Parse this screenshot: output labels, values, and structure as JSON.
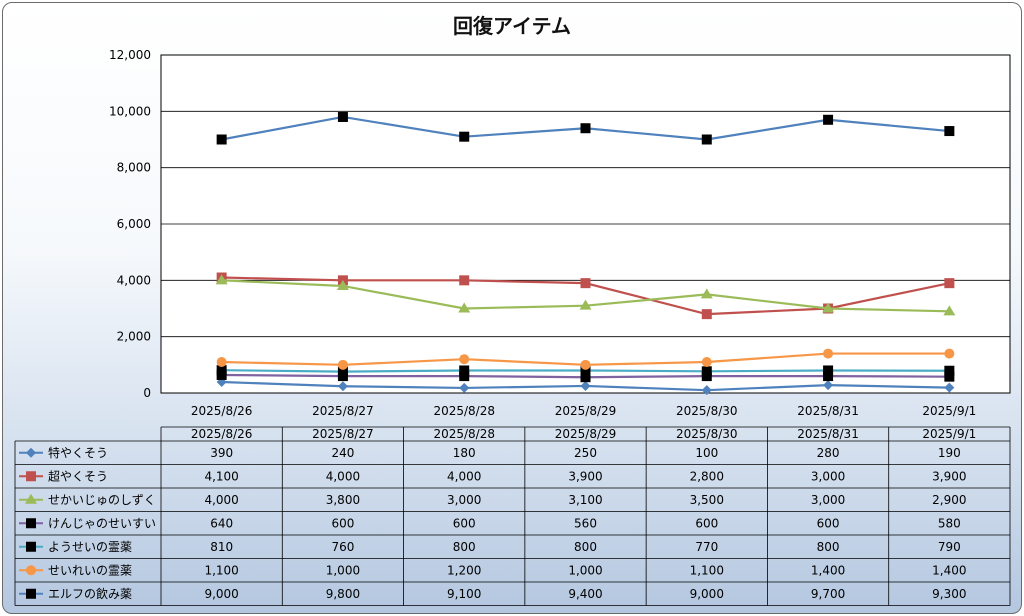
{
  "chart_data": {
    "type": "line",
    "title": "回復アイテム",
    "categories": [
      "2025/8/26",
      "2025/8/27",
      "2025/8/28",
      "2025/8/29",
      "2025/8/30",
      "2025/8/31",
      "2025/9/1"
    ],
    "ylim": [
      0,
      12000
    ],
    "yticks": [
      0,
      2000,
      4000,
      6000,
      8000,
      10000,
      12000
    ],
    "ytick_labels": [
      "0",
      "2,000",
      "4,000",
      "6,000",
      "8,000",
      "10,000",
      "12,000"
    ],
    "grid": true,
    "legend": "data-table",
    "series": [
      {
        "name": "特やくそう",
        "color": "#4f81bd",
        "marker": "diamond",
        "values": [
          390,
          240,
          180,
          250,
          100,
          280,
          190
        ],
        "labels": [
          "390",
          "240",
          "180",
          "250",
          "100",
          "280",
          "190"
        ]
      },
      {
        "name": "超やくそう",
        "color": "#c0504d",
        "marker": "square",
        "values": [
          4100,
          4000,
          4000,
          3900,
          2800,
          3000,
          3900
        ],
        "labels": [
          "4,100",
          "4,000",
          "4,000",
          "3,900",
          "2,800",
          "3,000",
          "3,900"
        ]
      },
      {
        "name": "せかいじゅのしずく",
        "color": "#9bbb59",
        "marker": "triangle",
        "values": [
          4000,
          3800,
          3000,
          3100,
          3500,
          3000,
          2900
        ],
        "labels": [
          "4,000",
          "3,800",
          "3,000",
          "3,100",
          "3,500",
          "3,000",
          "2,900"
        ]
      },
      {
        "name": "けんじゃのせいすい",
        "color": "#7f62a0",
        "marker": "square-black",
        "values": [
          640,
          600,
          600,
          560,
          600,
          600,
          580
        ],
        "labels": [
          "640",
          "600",
          "600",
          "560",
          "600",
          "600",
          "580"
        ]
      },
      {
        "name": "ようせいの霊薬",
        "color": "#4bacc6",
        "marker": "square-black",
        "values": [
          810,
          760,
          800,
          800,
          770,
          800,
          790
        ],
        "labels": [
          "810",
          "760",
          "800",
          "800",
          "770",
          "800",
          "790"
        ]
      },
      {
        "name": "せいれいの霊薬",
        "color": "#f79646",
        "marker": "circle",
        "values": [
          1100,
          1000,
          1200,
          1000,
          1100,
          1400,
          1400
        ],
        "labels": [
          "1,100",
          "1,000",
          "1,200",
          "1,000",
          "1,100",
          "1,400",
          "1,400"
        ]
      },
      {
        "name": "エルフの飲み薬",
        "color": "#4f81bd",
        "marker": "square-black",
        "values": [
          9000,
          9800,
          9100,
          9400,
          9000,
          9700,
          9300
        ],
        "labels": [
          "9,000",
          "9,800",
          "9,100",
          "9,400",
          "9,000",
          "9,700",
          "9,300"
        ]
      }
    ]
  }
}
